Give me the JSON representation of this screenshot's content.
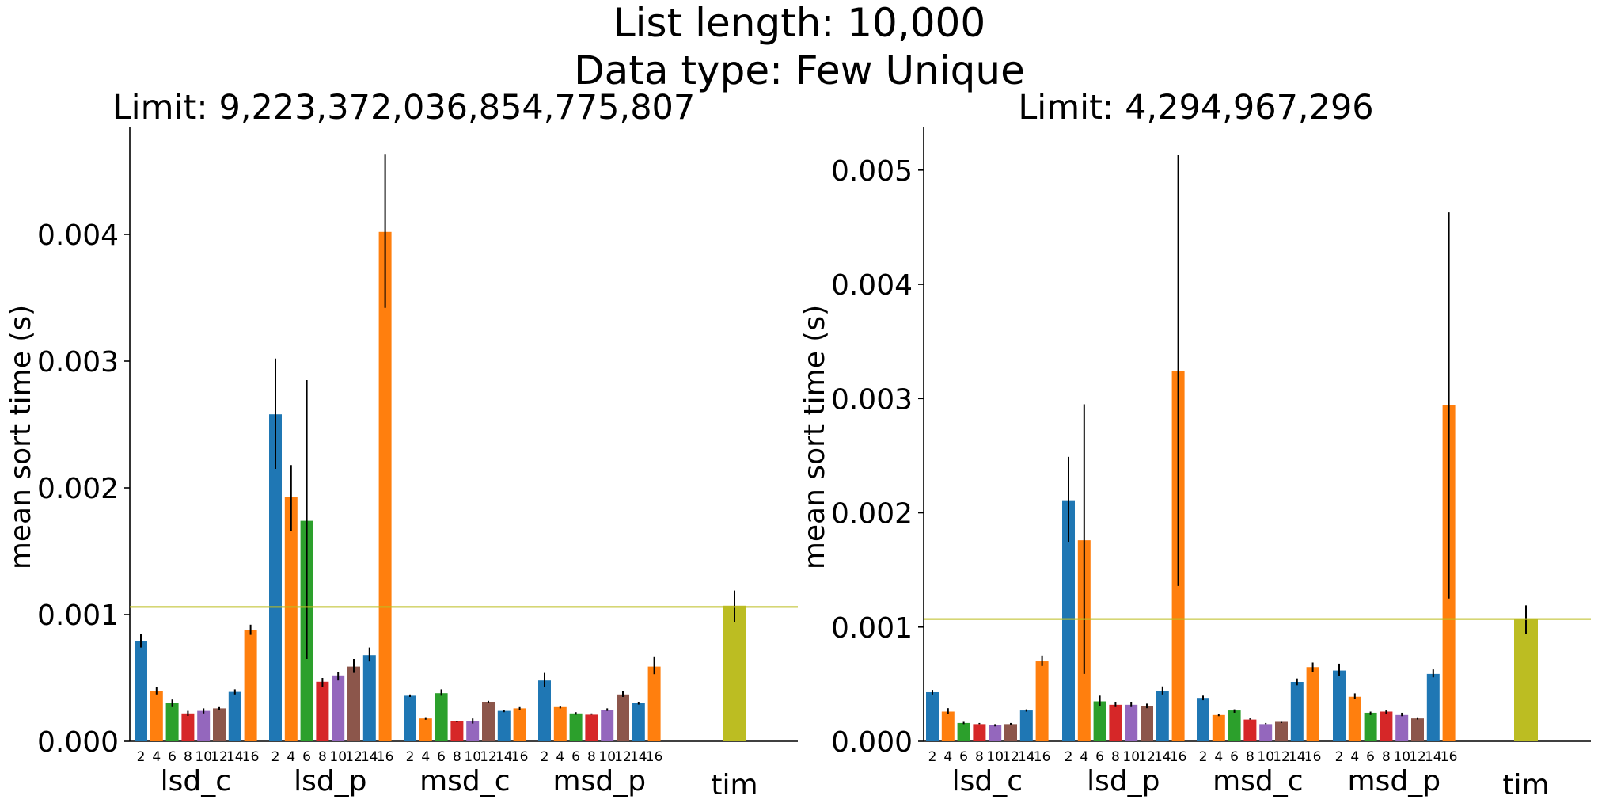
{
  "suptitle": [
    "List length: 10,000",
    "Data type: Few Unique"
  ],
  "colors": {
    "palette": [
      "#1f77b4",
      "#ff7f0e",
      "#2ca02c",
      "#d62728",
      "#9467bd",
      "#8c564b",
      "#1f77b4",
      "#ff7f0e"
    ],
    "tim": "#bcbd22",
    "refline": "#bcbd22",
    "errorbar": "#000000"
  },
  "chart_data": [
    {
      "type": "bar",
      "title": "Limit: 9,223,372,036,854,775,807",
      "ylabel": "mean sort time (s)",
      "xlabel": "",
      "ylim": [
        0,
        0.00485
      ],
      "yticks": [
        0.0,
        0.001,
        0.002,
        0.003,
        0.004
      ],
      "ytick_labels": [
        "0.000",
        "0.001",
        "0.002",
        "0.003",
        "0.004"
      ],
      "bar_labels": [
        "2",
        "4",
        "6",
        "8",
        "10",
        "12",
        "14",
        "16"
      ],
      "reference_line": 0.00106,
      "groups": [
        {
          "name": "lsd_c",
          "values": [
            0.00079,
            0.0004,
            0.0003,
            0.00022,
            0.00024,
            0.00026,
            0.00039,
            0.00088
          ],
          "err_low": [
            0.00074,
            0.00037,
            0.00027,
            0.0002,
            0.00022,
            0.00025,
            0.00037,
            0.00084
          ],
          "err_high": [
            0.00085,
            0.00043,
            0.00033,
            0.00024,
            0.00026,
            0.00027,
            0.00041,
            0.00092
          ]
        },
        {
          "name": "lsd_p",
          "values": [
            0.00258,
            0.00193,
            0.00174,
            0.00047,
            0.00052,
            0.00059,
            0.00068,
            0.00402
          ],
          "err_low": [
            0.00215,
            0.00166,
            0.00065,
            0.00043,
            0.00048,
            0.00054,
            0.00063,
            0.00342
          ],
          "err_high": [
            0.00302,
            0.00218,
            0.00285,
            0.0005,
            0.00055,
            0.00065,
            0.00074,
            0.00463
          ]
        },
        {
          "name": "msd_c",
          "values": [
            0.00036,
            0.00018,
            0.00038,
            0.00016,
            0.00016,
            0.00031,
            0.00024,
            0.00026
          ],
          "err_low": [
            0.00035,
            0.00017,
            0.00036,
            0.00015,
            0.00014,
            0.0003,
            0.00023,
            0.00025
          ],
          "err_high": [
            0.00037,
            0.00019,
            0.00041,
            0.00016,
            0.00018,
            0.00032,
            0.00025,
            0.00027
          ]
        },
        {
          "name": "msd_p",
          "values": [
            0.00048,
            0.00027,
            0.00022,
            0.00021,
            0.00025,
            0.00037,
            0.0003,
            0.00059
          ],
          "err_low": [
            0.00043,
            0.00026,
            0.00021,
            0.00021,
            0.00024,
            0.00035,
            0.00029,
            0.00053
          ],
          "err_high": [
            0.00054,
            0.00028,
            0.00023,
            0.00022,
            0.00026,
            0.0004,
            0.00031,
            0.00067
          ]
        },
        {
          "name": "tim",
          "values": [
            0.00107
          ],
          "err_low": [
            0.00094
          ],
          "err_high": [
            0.00119
          ]
        }
      ]
    },
    {
      "type": "bar",
      "title": "Limit: 4,294,967,296",
      "ylabel": "mean sort time (s)",
      "xlabel": "",
      "ylim": [
        0,
        0.00538
      ],
      "yticks": [
        0.0,
        0.001,
        0.002,
        0.003,
        0.004,
        0.005
      ],
      "ytick_labels": [
        "0.000",
        "0.001",
        "0.002",
        "0.003",
        "0.004",
        "0.005"
      ],
      "bar_labels": [
        "2",
        "4",
        "6",
        "8",
        "10",
        "12",
        "14",
        "16"
      ],
      "reference_line": 0.00107,
      "groups": [
        {
          "name": "lsd_c",
          "values": [
            0.00043,
            0.00026,
            0.00016,
            0.00015,
            0.00014,
            0.00015,
            0.00027,
            0.0007
          ],
          "err_low": [
            0.00041,
            0.00024,
            0.00015,
            0.00015,
            0.00013,
            0.00014,
            0.00026,
            0.00066
          ],
          "err_high": [
            0.00045,
            0.00029,
            0.00017,
            0.00016,
            0.00015,
            0.00016,
            0.00028,
            0.00075
          ]
        },
        {
          "name": "lsd_p",
          "values": [
            0.00211,
            0.00176,
            0.00035,
            0.00032,
            0.00032,
            0.00031,
            0.00044,
            0.00324
          ],
          "err_low": [
            0.00174,
            0.00059,
            0.00031,
            0.0003,
            0.0003,
            0.00029,
            0.00041,
            0.00136
          ],
          "err_high": [
            0.00249,
            0.00295,
            0.0004,
            0.00034,
            0.00034,
            0.00033,
            0.00048,
            0.00513
          ]
        },
        {
          "name": "msd_c",
          "values": [
            0.00038,
            0.00023,
            0.00027,
            0.00019,
            0.00015,
            0.00017,
            0.00052,
            0.00065
          ],
          "err_low": [
            0.00036,
            0.00022,
            0.00025,
            0.00019,
            0.00015,
            0.00016,
            0.00049,
            0.00061
          ],
          "err_high": [
            0.0004,
            0.00024,
            0.00028,
            0.0002,
            0.00016,
            0.00017,
            0.00055,
            0.00069
          ]
        },
        {
          "name": "msd_p",
          "values": [
            0.00062,
            0.00039,
            0.00025,
            0.00026,
            0.00023,
            0.0002,
            0.00059,
            0.00294
          ],
          "err_low": [
            0.00057,
            0.00037,
            0.00023,
            0.00024,
            0.00022,
            0.00019,
            0.00056,
            0.00125
          ],
          "err_high": [
            0.00068,
            0.00042,
            0.00026,
            0.00027,
            0.00025,
            0.00021,
            0.00063,
            0.00463
          ]
        },
        {
          "name": "tim",
          "values": [
            0.00107
          ],
          "err_low": [
            0.00094
          ],
          "err_high": [
            0.00119
          ]
        }
      ]
    }
  ]
}
